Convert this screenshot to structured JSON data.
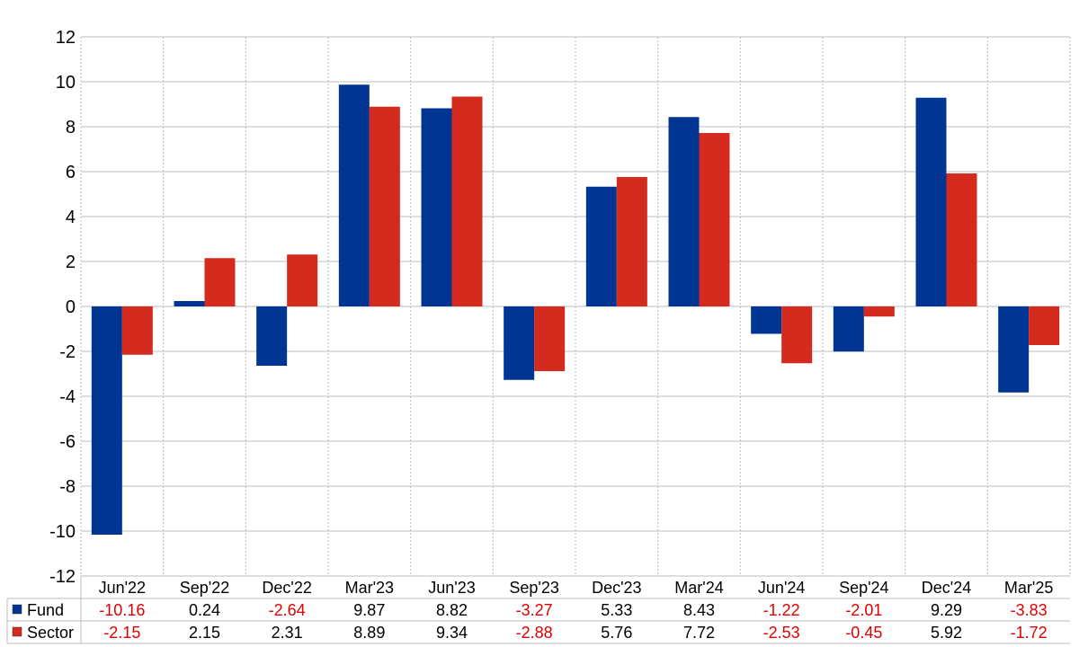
{
  "chart_data": {
    "type": "bar",
    "categories": [
      "Jun'22",
      "Sep'22",
      "Dec'22",
      "Mar'23",
      "Jun'23",
      "Sep'23",
      "Dec'23",
      "Mar'24",
      "Jun'24",
      "Sep'24",
      "Dec'24",
      "Mar'25"
    ],
    "series": [
      {
        "name": "Fund",
        "color": "#003594",
        "values": [
          -10.16,
          0.24,
          -2.64,
          9.87,
          8.82,
          -3.27,
          5.33,
          8.43,
          -1.22,
          -2.01,
          9.29,
          -3.83
        ]
      },
      {
        "name": "Sector",
        "color": "#d52b1e",
        "values": [
          -2.15,
          2.15,
          2.31,
          8.89,
          9.34,
          -2.88,
          5.76,
          7.72,
          -2.53,
          -0.45,
          5.92,
          -1.72
        ]
      }
    ],
    "ylim": [
      -12,
      12
    ],
    "yticks": [
      12,
      10,
      8,
      6,
      4,
      2,
      0,
      -2,
      -4,
      -6,
      -8,
      -10,
      -12
    ],
    "title": "",
    "xlabel": "",
    "ylabel": "",
    "grid": true,
    "legend": "table-below",
    "table": {
      "rows": [
        {
          "label": "Fund",
          "values": [
            "-10.16",
            "0.24",
            "-2.64",
            "9.87",
            "8.82",
            "-3.27",
            "5.33",
            "8.43",
            "-1.22",
            "-2.01",
            "9.29",
            "-3.83"
          ]
        },
        {
          "label": "Sector",
          "values": [
            "-2.15",
            "2.15",
            "2.31",
            "8.89",
            "9.34",
            "-2.88",
            "5.76",
            "7.72",
            "-2.53",
            "-0.45",
            "5.92",
            "-1.72"
          ]
        }
      ]
    },
    "colors": {
      "negative_text": "#e00000",
      "positive_text": "#000000",
      "grid": "#bdbdbd"
    }
  }
}
